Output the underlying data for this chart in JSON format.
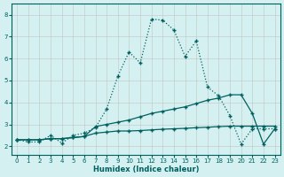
{
  "xlabel": "Humidex (Indice chaleur)",
  "background_color": "#d4f0f0",
  "grid_color": "#c0c0c0",
  "line_color": "#006060",
  "xlim": [
    -0.5,
    23.5
  ],
  "ylim": [
    1.6,
    8.5
  ],
  "xticks": [
    0,
    1,
    2,
    3,
    4,
    5,
    6,
    7,
    8,
    9,
    10,
    11,
    12,
    13,
    14,
    15,
    16,
    17,
    18,
    19,
    20,
    21,
    22,
    23
  ],
  "yticks": [
    2,
    3,
    4,
    5,
    6,
    7,
    8
  ],
  "line1_x": [
    0,
    1,
    2,
    3,
    4,
    5,
    6,
    7,
    8,
    9,
    10,
    11,
    12,
    13,
    14,
    15,
    16,
    17,
    18,
    19,
    20,
    21,
    22,
    23
  ],
  "line1_y": [
    2.3,
    2.2,
    2.2,
    2.5,
    2.15,
    2.5,
    2.6,
    2.85,
    3.7,
    5.2,
    6.3,
    5.8,
    7.8,
    7.75,
    7.3,
    6.1,
    6.8,
    4.7,
    4.3,
    3.4,
    2.1,
    2.8,
    2.8,
    2.8
  ],
  "line2_x": [
    0,
    1,
    2,
    3,
    4,
    5,
    6,
    7,
    8,
    9,
    10,
    11,
    12,
    13,
    14,
    15,
    16,
    17,
    18,
    19,
    20,
    21,
    22,
    23
  ],
  "line2_y": [
    2.3,
    2.3,
    2.3,
    2.35,
    2.35,
    2.4,
    2.45,
    2.9,
    3.0,
    3.1,
    3.2,
    3.35,
    3.5,
    3.6,
    3.7,
    3.8,
    3.95,
    4.1,
    4.2,
    4.35,
    4.35,
    3.5,
    2.1,
    2.8
  ],
  "line3_x": [
    0,
    1,
    2,
    3,
    4,
    5,
    6,
    7,
    8,
    9,
    10,
    11,
    12,
    13,
    14,
    15,
    16,
    17,
    18,
    19,
    20,
    21,
    22,
    23
  ],
  "line3_y": [
    2.3,
    2.3,
    2.3,
    2.35,
    2.35,
    2.4,
    2.45,
    2.6,
    2.65,
    2.7,
    2.7,
    2.72,
    2.75,
    2.78,
    2.8,
    2.82,
    2.85,
    2.87,
    2.9,
    2.92,
    2.92,
    2.92,
    2.92,
    2.92
  ]
}
